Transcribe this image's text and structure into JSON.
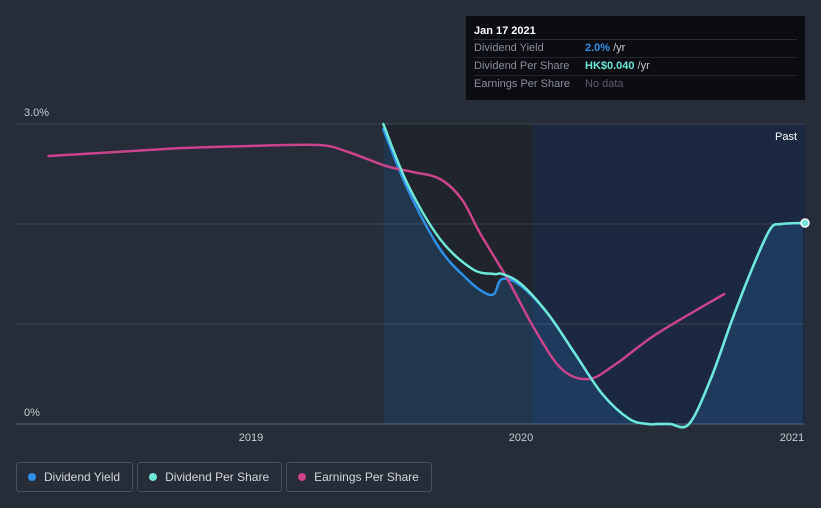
{
  "chart_data": {
    "type": "line",
    "title": "",
    "y_axis": {
      "min": 0,
      "max": 3.0,
      "unit": "%",
      "tick_labels": [
        "3.0%",
        "0%"
      ]
    },
    "x_axis": {
      "tick_labels": [
        "2019",
        "2020",
        "2021"
      ],
      "tick_years": [
        2019,
        2020,
        2021
      ]
    },
    "past_label": "Past",
    "series": [
      {
        "name": "Dividend Yield",
        "color": "#2f8fe6",
        "x": [
          2019.49,
          2019.58,
          2019.7,
          2019.8,
          2019.86,
          2019.9,
          2019.93,
          2020.0,
          2020.1,
          2020.2,
          2020.3,
          2020.4,
          2020.47,
          2020.5,
          2020.55,
          2020.62,
          2020.7,
          2020.78,
          2020.86,
          2020.92,
          2020.96,
          2021.04
        ],
        "values": [
          2.95,
          2.35,
          1.75,
          1.45,
          1.32,
          1.3,
          1.45,
          1.38,
          1.1,
          0.7,
          0.3,
          0.05,
          0.0,
          0.0,
          0.0,
          0.0,
          0.45,
          1.05,
          1.6,
          1.95,
          2.0,
          2.01
        ]
      },
      {
        "name": "Dividend Per Share",
        "color": "#6fe8da",
        "x": [
          2019.49,
          2019.58,
          2019.7,
          2019.82,
          2019.9,
          2019.93,
          2020.0,
          2020.1,
          2020.2,
          2020.3,
          2020.4,
          2020.47,
          2020.5,
          2020.55,
          2020.62,
          2020.7,
          2020.78,
          2020.86,
          2020.92,
          2020.96,
          2021.04
        ],
        "values": [
          3.0,
          2.4,
          1.85,
          1.55,
          1.5,
          1.5,
          1.4,
          1.1,
          0.7,
          0.3,
          0.05,
          0.0,
          0.0,
          0.0,
          0.0,
          0.45,
          1.05,
          1.6,
          1.95,
          2.0,
          2.01
        ]
      },
      {
        "name": "Earnings Per Share",
        "color": "#c9448a",
        "x": [
          2018.25,
          2018.5,
          2018.75,
          2019.0,
          2019.25,
          2019.36,
          2019.5,
          2019.6,
          2019.7,
          2019.78,
          2019.85,
          2019.95,
          2020.05,
          2020.15,
          2020.25,
          2020.35,
          2020.5,
          2020.75
        ],
        "values": [
          2.68,
          2.72,
          2.76,
          2.78,
          2.79,
          2.72,
          2.58,
          2.52,
          2.45,
          2.25,
          1.9,
          1.45,
          0.95,
          0.55,
          0.45,
          0.6,
          0.9,
          1.3
        ]
      }
    ]
  },
  "tooltip": {
    "date": "Jan 17 2021",
    "rows": [
      {
        "label": "Dividend Yield",
        "value": "2.0%",
        "unit": "/yr",
        "color": "#2f8fe6"
      },
      {
        "label": "Dividend Per Share",
        "value": "HK$0.040",
        "unit": "/yr",
        "color": "#6fe8da"
      },
      {
        "label": "Earnings Per Share",
        "value": "",
        "nodata": "No data",
        "color": "#5b6068"
      }
    ]
  },
  "legend": [
    {
      "label": "Dividend Yield",
      "color": "#2f8fe6"
    },
    {
      "label": "Dividend Per Share",
      "color": "#6fe8da"
    },
    {
      "label": "Earnings Per Share",
      "color": "#c9448a"
    }
  ]
}
